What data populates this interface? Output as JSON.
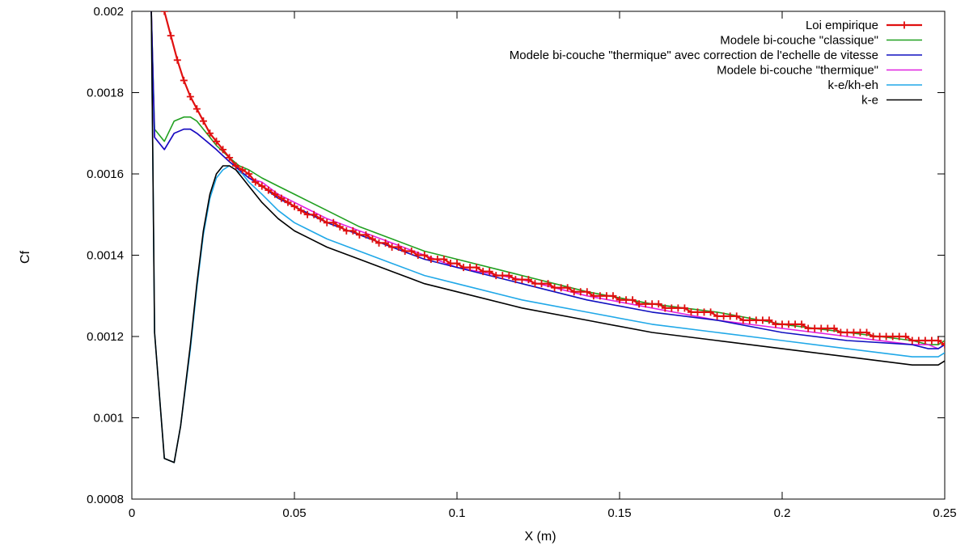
{
  "chart_data": {
    "type": "line",
    "title": "",
    "xlabel": "X (m)",
    "ylabel": "Cf",
    "xlim": [
      0,
      0.25
    ],
    "ylim": [
      0.0008,
      0.002
    ],
    "xticks": [
      "0",
      "0.05",
      "0.1",
      "0.15",
      "0.2",
      "0.25"
    ],
    "yticks": [
      "0.0008",
      "0.001",
      "0.0012",
      "0.0014",
      "0.0016",
      "0.0018",
      "0.002"
    ],
    "grid": false,
    "legend_position": "top-right",
    "series": [
      {
        "name": "Loi empirique",
        "color": "#e01010",
        "marker": "plus",
        "x": [
          0.01,
          0.012,
          0.014,
          0.016,
          0.018,
          0.02,
          0.022,
          0.024,
          0.026,
          0.028,
          0.03,
          0.032,
          0.034,
          0.036,
          0.038,
          0.04,
          0.042,
          0.044,
          0.046,
          0.048,
          0.05,
          0.052,
          0.054,
          0.056,
          0.058,
          0.06,
          0.062,
          0.064,
          0.066,
          0.068,
          0.07,
          0.072,
          0.074,
          0.076,
          0.078,
          0.08,
          0.082,
          0.084,
          0.086,
          0.088,
          0.09,
          0.092,
          0.094,
          0.096,
          0.098,
          0.1,
          0.102,
          0.104,
          0.106,
          0.108,
          0.11,
          0.112,
          0.114,
          0.116,
          0.118,
          0.12,
          0.122,
          0.124,
          0.126,
          0.128,
          0.13,
          0.132,
          0.134,
          0.136,
          0.138,
          0.14,
          0.142,
          0.144,
          0.146,
          0.148,
          0.15,
          0.152,
          0.154,
          0.156,
          0.158,
          0.16,
          0.162,
          0.164,
          0.166,
          0.168,
          0.17,
          0.172,
          0.174,
          0.176,
          0.178,
          0.18,
          0.182,
          0.184,
          0.186,
          0.188,
          0.19,
          0.192,
          0.194,
          0.196,
          0.198,
          0.2,
          0.202,
          0.204,
          0.206,
          0.208,
          0.21,
          0.212,
          0.214,
          0.216,
          0.218,
          0.22,
          0.222,
          0.224,
          0.226,
          0.228,
          0.23,
          0.232,
          0.234,
          0.236,
          0.238,
          0.24,
          0.242,
          0.244,
          0.246,
          0.248,
          0.25
        ],
        "y": [
          0.002,
          0.00194,
          0.00188,
          0.00183,
          0.00179,
          0.00176,
          0.00173,
          0.0017,
          0.00168,
          0.00166,
          0.00164,
          0.00162,
          0.00161,
          0.0016,
          0.00158,
          0.00157,
          0.00156,
          0.00155,
          0.00154,
          0.00153,
          0.00152,
          0.00151,
          0.0015,
          0.0015,
          0.00149,
          0.00148,
          0.00148,
          0.00147,
          0.00146,
          0.00146,
          0.00145,
          0.00145,
          0.00144,
          0.00143,
          0.00143,
          0.00142,
          0.00142,
          0.00141,
          0.00141,
          0.0014,
          0.0014,
          0.00139,
          0.00139,
          0.00139,
          0.00138,
          0.00138,
          0.00137,
          0.00137,
          0.00137,
          0.00136,
          0.00136,
          0.00135,
          0.00135,
          0.00135,
          0.00134,
          0.00134,
          0.00134,
          0.00133,
          0.00133,
          0.00133,
          0.00132,
          0.00132,
          0.00132,
          0.00131,
          0.00131,
          0.00131,
          0.0013,
          0.0013,
          0.0013,
          0.0013,
          0.00129,
          0.00129,
          0.00129,
          0.00128,
          0.00128,
          0.00128,
          0.00128,
          0.00127,
          0.00127,
          0.00127,
          0.00127,
          0.00126,
          0.00126,
          0.00126,
          0.00126,
          0.00125,
          0.00125,
          0.00125,
          0.00125,
          0.00124,
          0.00124,
          0.00124,
          0.00124,
          0.00124,
          0.00123,
          0.00123,
          0.00123,
          0.00123,
          0.00123,
          0.00122,
          0.00122,
          0.00122,
          0.00122,
          0.00122,
          0.00121,
          0.00121,
          0.00121,
          0.00121,
          0.00121,
          0.0012,
          0.0012,
          0.0012,
          0.0012,
          0.0012,
          0.0012,
          0.00119,
          0.00119,
          0.00119,
          0.00119,
          0.00119,
          0.00118
        ]
      },
      {
        "name": "Modele bi-couche \"classique\"",
        "color": "#20a020",
        "x": [
          0.006,
          0.007,
          0.01,
          0.013,
          0.016,
          0.018,
          0.02,
          0.023,
          0.026,
          0.03,
          0.033,
          0.036,
          0.04,
          0.045,
          0.05,
          0.06,
          0.07,
          0.08,
          0.09,
          0.1,
          0.12,
          0.14,
          0.16,
          0.18,
          0.2,
          0.22,
          0.24,
          0.245,
          0.248,
          0.25
        ],
        "y": [
          0.002,
          0.00171,
          0.00168,
          0.00173,
          0.00174,
          0.00174,
          0.00173,
          0.0017,
          0.00167,
          0.00164,
          0.00162,
          0.00161,
          0.00159,
          0.00157,
          0.00155,
          0.00151,
          0.00147,
          0.00144,
          0.00141,
          0.00139,
          0.00135,
          0.00131,
          0.00128,
          0.00126,
          0.00123,
          0.00121,
          0.00119,
          0.00118,
          0.00118,
          0.00119
        ]
      },
      {
        "name": "Modele bi-couche \"thermique\" avec correction de l'echelle de vitesse",
        "color": "#1010c0",
        "x": [
          0.006,
          0.007,
          0.01,
          0.013,
          0.016,
          0.018,
          0.02,
          0.023,
          0.026,
          0.03,
          0.033,
          0.036,
          0.04,
          0.045,
          0.05,
          0.06,
          0.07,
          0.08,
          0.09,
          0.1,
          0.12,
          0.14,
          0.16,
          0.18,
          0.2,
          0.22,
          0.24,
          0.245,
          0.248,
          0.25
        ],
        "y": [
          0.002,
          0.00169,
          0.00166,
          0.0017,
          0.00171,
          0.00171,
          0.0017,
          0.00168,
          0.00166,
          0.00163,
          0.00161,
          0.00159,
          0.00157,
          0.00154,
          0.00152,
          0.00148,
          0.00145,
          0.00142,
          0.00139,
          0.00137,
          0.00133,
          0.00129,
          0.00126,
          0.00124,
          0.00121,
          0.00119,
          0.00118,
          0.00117,
          0.00117,
          0.00118
        ]
      },
      {
        "name": "Modele bi-couche \"thermique\"",
        "color": "#e020e0",
        "x": [
          0.006,
          0.007,
          0.01,
          0.013,
          0.016,
          0.018,
          0.02,
          0.023,
          0.026,
          0.03,
          0.033,
          0.036,
          0.04,
          0.045,
          0.05,
          0.06,
          0.07,
          0.08,
          0.09,
          0.1,
          0.12,
          0.14,
          0.16,
          0.18,
          0.2,
          0.22,
          0.24,
          0.245,
          0.248,
          0.25
        ],
        "y": [
          0.002,
          0.00169,
          0.00166,
          0.0017,
          0.00171,
          0.00171,
          0.0017,
          0.00168,
          0.00166,
          0.00163,
          0.00161,
          0.00159,
          0.00158,
          0.00155,
          0.00153,
          0.00149,
          0.00146,
          0.00143,
          0.0014,
          0.00137,
          0.00134,
          0.0013,
          0.00127,
          0.00124,
          0.00122,
          0.0012,
          0.00118,
          0.00118,
          0.00117,
          0.00118
        ]
      },
      {
        "name": "k-e/kh-eh",
        "color": "#20a8e8",
        "x": [
          0.006,
          0.007,
          0.01,
          0.013,
          0.015,
          0.018,
          0.02,
          0.022,
          0.024,
          0.026,
          0.028,
          0.03,
          0.032,
          0.034,
          0.036,
          0.04,
          0.045,
          0.05,
          0.06,
          0.07,
          0.08,
          0.09,
          0.1,
          0.12,
          0.14,
          0.16,
          0.18,
          0.2,
          0.22,
          0.24,
          0.245,
          0.248,
          0.25
        ],
        "y": [
          0.002,
          0.00121,
          0.0009,
          0.00089,
          0.00098,
          0.00117,
          0.00132,
          0.00145,
          0.00154,
          0.00159,
          0.00161,
          0.00162,
          0.00161,
          0.0016,
          0.00158,
          0.00155,
          0.00151,
          0.00148,
          0.00144,
          0.00141,
          0.00138,
          0.00135,
          0.00133,
          0.00129,
          0.00126,
          0.00123,
          0.00121,
          0.00119,
          0.00117,
          0.00115,
          0.00115,
          0.00115,
          0.00116
        ]
      },
      {
        "name": "k-e",
        "color": "#000000",
        "x": [
          0.006,
          0.007,
          0.01,
          0.013,
          0.015,
          0.018,
          0.02,
          0.022,
          0.024,
          0.026,
          0.028,
          0.03,
          0.032,
          0.034,
          0.036,
          0.04,
          0.045,
          0.05,
          0.06,
          0.07,
          0.08,
          0.09,
          0.1,
          0.12,
          0.14,
          0.16,
          0.18,
          0.2,
          0.22,
          0.24,
          0.245,
          0.248,
          0.25
        ],
        "y": [
          0.002,
          0.00121,
          0.0009,
          0.00089,
          0.00098,
          0.00118,
          0.00133,
          0.00146,
          0.00155,
          0.0016,
          0.00162,
          0.00162,
          0.00161,
          0.00159,
          0.00157,
          0.00153,
          0.00149,
          0.00146,
          0.00142,
          0.00139,
          0.00136,
          0.00133,
          0.00131,
          0.00127,
          0.00124,
          0.00121,
          0.00119,
          0.00117,
          0.00115,
          0.00113,
          0.00113,
          0.00113,
          0.00114
        ]
      }
    ]
  }
}
